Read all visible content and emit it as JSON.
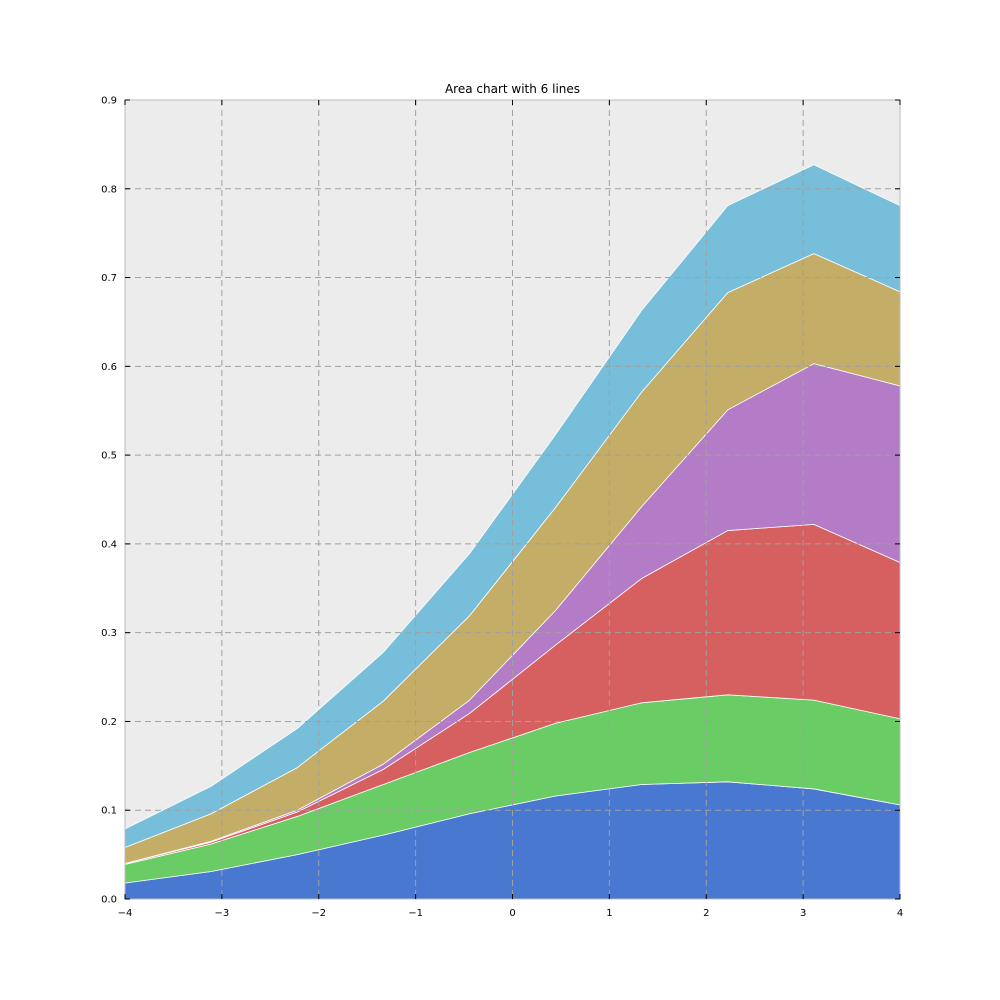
{
  "chart_data": {
    "type": "area",
    "stacked": true,
    "title": "Area chart with 6 lines",
    "xlabel": "",
    "ylabel": "",
    "xlim": [
      -4,
      4
    ],
    "ylim": [
      0,
      0.9
    ],
    "grid": true,
    "x": [
      -4,
      -3.111,
      -2.222,
      -1.333,
      -0.444,
      0.444,
      1.333,
      2.222,
      3.111,
      4
    ],
    "x_ticks": [
      {
        "value": -4,
        "label": "−4"
      },
      {
        "value": -3,
        "label": "−3"
      },
      {
        "value": -2,
        "label": "−2"
      },
      {
        "value": -1,
        "label": "−1"
      },
      {
        "value": 0,
        "label": "0"
      },
      {
        "value": 1,
        "label": "1"
      },
      {
        "value": 2,
        "label": "2"
      },
      {
        "value": 3,
        "label": "3"
      },
      {
        "value": 4,
        "label": "4"
      }
    ],
    "y_ticks": [
      {
        "value": 0.0,
        "label": "0.0"
      },
      {
        "value": 0.1,
        "label": "0.1"
      },
      {
        "value": 0.2,
        "label": "0.2"
      },
      {
        "value": 0.3,
        "label": "0.3"
      },
      {
        "value": 0.4,
        "label": "0.4"
      },
      {
        "value": 0.5,
        "label": "0.5"
      },
      {
        "value": 0.6,
        "label": "0.6"
      },
      {
        "value": 0.7,
        "label": "0.7"
      },
      {
        "value": 0.8,
        "label": "0.8"
      },
      {
        "value": 0.9,
        "label": "0.9"
      }
    ],
    "series": [
      {
        "color": "#4878cf",
        "values": [
          0.018,
          0.031,
          0.05,
          0.072,
          0.096,
          0.116,
          0.129,
          0.132,
          0.124,
          0.106
        ]
      },
      {
        "color": "#6acc65",
        "values": [
          0.021,
          0.031,
          0.043,
          0.057,
          0.069,
          0.082,
          0.092,
          0.098,
          0.1,
          0.097
        ]
      },
      {
        "color": "#d65f5f",
        "values": [
          0.001,
          0.002,
          0.005,
          0.017,
          0.044,
          0.088,
          0.14,
          0.185,
          0.198,
          0.176
        ]
      },
      {
        "color": "#b47cc7",
        "values": [
          0.0,
          0.001,
          0.002,
          0.006,
          0.015,
          0.039,
          0.081,
          0.136,
          0.181,
          0.199
        ]
      },
      {
        "color": "#c4ad66",
        "values": [
          0.018,
          0.031,
          0.048,
          0.071,
          0.095,
          0.116,
          0.129,
          0.132,
          0.124,
          0.106
        ]
      },
      {
        "color": "#77bedb",
        "values": [
          0.021,
          0.031,
          0.044,
          0.055,
          0.07,
          0.082,
          0.092,
          0.098,
          0.1,
          0.097
        ]
      }
    ]
  }
}
